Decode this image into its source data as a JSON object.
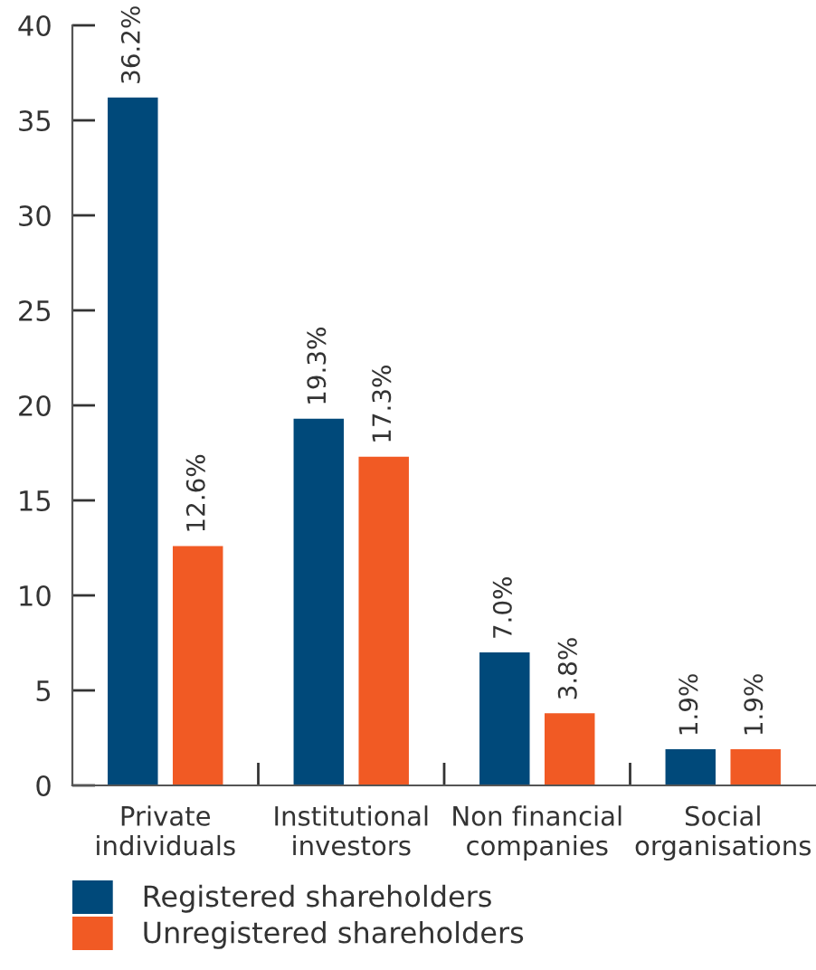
{
  "chart_data": {
    "type": "bar",
    "categories": [
      "Private\nindividuals",
      "Institutional\ninvestors",
      "Non financial\ncompanies",
      "Social\norganisations"
    ],
    "series": [
      {
        "name": "Registered shareholders",
        "color": "#00497a",
        "values": [
          36.2,
          19.3,
          7.0,
          1.9
        ],
        "value_labels": [
          "36.2%",
          "19.3%",
          "7.0%",
          "1.9%"
        ]
      },
      {
        "name": "Unregistered shareholders",
        "color": "#f15a24",
        "values": [
          12.6,
          17.3,
          3.8,
          1.9
        ],
        "value_labels": [
          "12.6%",
          "17.3%",
          "3.8%",
          "1.9%"
        ]
      }
    ],
    "ylim": [
      0,
      40
    ],
    "yticks": [
      0,
      5,
      10,
      15,
      20,
      25,
      30,
      35,
      40
    ],
    "grid": false,
    "legend": "bottom"
  }
}
